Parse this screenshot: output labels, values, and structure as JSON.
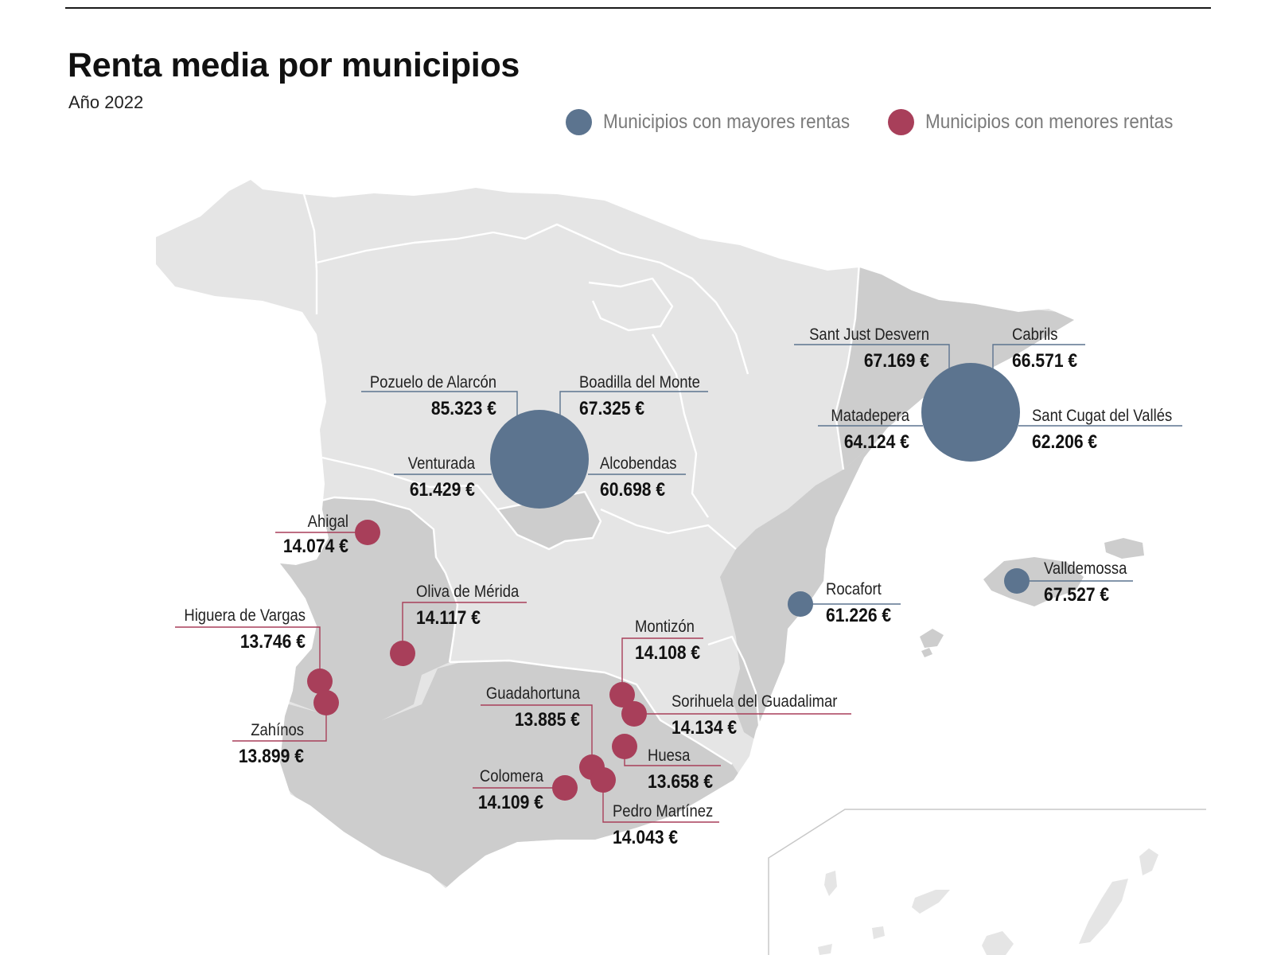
{
  "title": "Renta media por municipios",
  "subtitle": "Año 2022",
  "colors": {
    "high": "#5c748f",
    "low": "#a83f5a",
    "land": "#e5e5e5",
    "land_dark": "#cdcdcd",
    "borders": "#ffffff"
  },
  "legend": [
    {
      "label": "Municipios con mayores rentas",
      "color": "#5c748f"
    },
    {
      "label": "Municipios con menores rentas",
      "color": "#a83f5a"
    }
  ],
  "clusters": [
    {
      "name": "Comunidad de Madrid",
      "group": "high",
      "icon": "large-circle-icon"
    },
    {
      "name": "Barcelona",
      "group": "high",
      "icon": "large-circle-icon"
    }
  ],
  "municipalities": [
    {
      "name": "Pozuelo de Alarcón",
      "value": "85.323 €",
      "group": "high"
    },
    {
      "name": "Boadilla del Monte",
      "value": "67.325 €",
      "group": "high"
    },
    {
      "name": "Venturada",
      "value": "61.429 €",
      "group": "high"
    },
    {
      "name": "Alcobendas",
      "value": "60.698 €",
      "group": "high"
    },
    {
      "name": "Sant Just Desvern",
      "value": "67.169 €",
      "group": "high"
    },
    {
      "name": "Cabrils",
      "value": "66.571 €",
      "group": "high"
    },
    {
      "name": "Matadepera",
      "value": "64.124 €",
      "group": "high"
    },
    {
      "name": "Sant Cugat del Vallés",
      "value": "62.206 €",
      "group": "high"
    },
    {
      "name": "Rocafort",
      "value": "61.226 €",
      "group": "high"
    },
    {
      "name": "Valldemossa",
      "value": "67.527 €",
      "group": "high"
    },
    {
      "name": "Ahigal",
      "value": "14.074 €",
      "group": "low"
    },
    {
      "name": "Oliva de Mérida",
      "value": "14.117 €",
      "group": "low"
    },
    {
      "name": "Higuera de Vargas",
      "value": "13.746 €",
      "group": "low"
    },
    {
      "name": "Zahínos",
      "value": "13.899 €",
      "group": "low"
    },
    {
      "name": "Montizón",
      "value": "14.108 €",
      "group": "low"
    },
    {
      "name": "Sorihuela del Guadalimar",
      "value": "14.134 €",
      "group": "low"
    },
    {
      "name": "Guadahortuna",
      "value": "13.885 €",
      "group": "low"
    },
    {
      "name": "Huesa",
      "value": "13.658 €",
      "group": "low"
    },
    {
      "name": "Colomera",
      "value": "14.109 €",
      "group": "low"
    },
    {
      "name": "Pedro Martínez",
      "value": "14.043 €",
      "group": "low"
    }
  ]
}
